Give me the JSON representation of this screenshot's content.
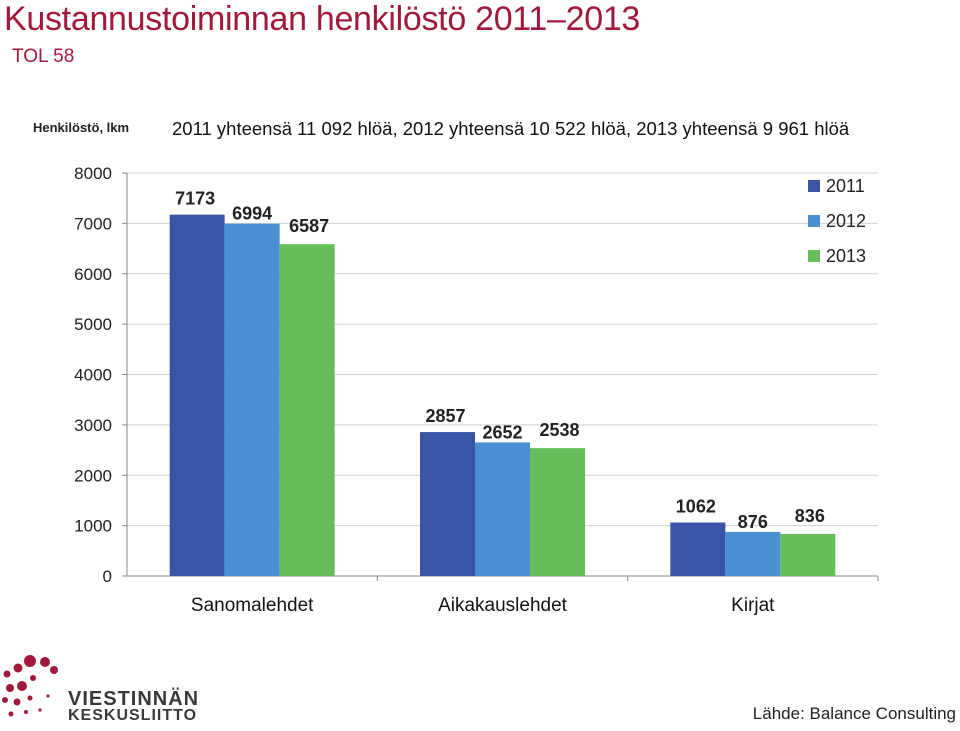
{
  "header": {
    "title": "Kustannustoiminnan henkilöstö 2011–2013",
    "subtitle": "TOL 58"
  },
  "axis_caption": "Henkilöstö, lkm",
  "note": "2011 yhteensä 11 092 hlöä, 2012 yhteensä 10 522 hlöä, 2013 yhteensä 9 961 hlöä",
  "source": "Lähde: Balance Consulting",
  "logo": {
    "line1": "VIESTINNÄN",
    "line2": "KESKUSLIITTO"
  },
  "colors": {
    "title": "#a0193c",
    "s2011": "#3b55a6",
    "s2012": "#4a90d3",
    "s2013": "#66be5a",
    "logo": "#a0193c"
  },
  "chart_data": {
    "type": "bar",
    "title": "Kustannustoiminnan henkilöstö 2011–2013",
    "ylabel": "Henkilöstö, lkm",
    "xlabel": "",
    "ylim": [
      0,
      8000
    ],
    "yticks": [
      0,
      1000,
      2000,
      3000,
      4000,
      5000,
      6000,
      7000,
      8000
    ],
    "grid": true,
    "legend": "top-right",
    "categories": [
      "Sanomalehdet",
      "Aikakauslehdet",
      "Kirjat"
    ],
    "series": [
      {
        "name": "2011",
        "color": "#3b55a6",
        "values": [
          7173,
          2857,
          1062
        ]
      },
      {
        "name": "2012",
        "color": "#4a90d3",
        "values": [
          6994,
          2652,
          876
        ]
      },
      {
        "name": "2013",
        "color": "#66be5a",
        "values": [
          6587,
          2538,
          836
        ]
      }
    ]
  }
}
